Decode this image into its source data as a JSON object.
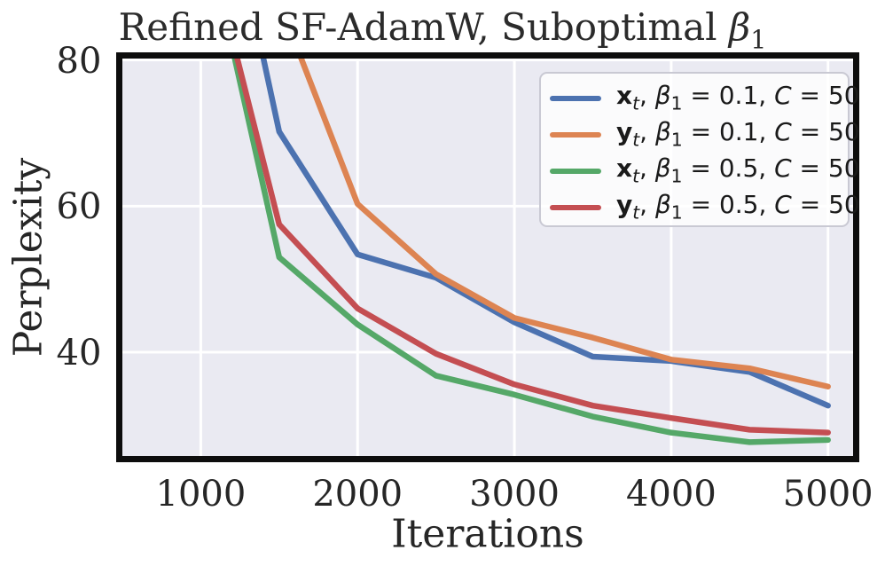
{
  "header": {
    "title_text": "Refined SF-AdamW, Suboptimal ",
    "title_symbol": "β",
    "title_symbol_sub": "1"
  },
  "axes": {
    "x_label": "Iterations",
    "y_label": "Perplexity"
  },
  "legend": {
    "items": [
      {
        "var": "x",
        "var_sub": "t",
        "pre": ", ",
        "beta": "β",
        "beta_sub": "1",
        "mid": " = 0.1, ",
        "c": "C",
        "tail": " = 50"
      },
      {
        "var": "y",
        "var_sub": "t",
        "pre": ", ",
        "beta": "β",
        "beta_sub": "1",
        "mid": " = 0.1, ",
        "c": "C",
        "tail": " = 50"
      },
      {
        "var": "x",
        "var_sub": "t",
        "pre": ", ",
        "beta": "β",
        "beta_sub": "1",
        "mid": " = 0.5, ",
        "c": "C",
        "tail": " = 50"
      },
      {
        "var": "y",
        "var_sub": "t",
        "pre": ", ",
        "beta": "β",
        "beta_sub": "1",
        "mid": " = 0.5, ",
        "c": "C",
        "tail": " = 50"
      }
    ]
  },
  "chart_data": {
    "type": "line",
    "title": "Refined SF-AdamW, Suboptimal β₁",
    "xlabel": "Iterations",
    "ylabel": "Perplexity",
    "xlim": [
      500,
      5160
    ],
    "ylim": [
      25.8,
      80.2
    ],
    "grid": true,
    "legend_position": "upper right",
    "background_color": "#EAEAF2",
    "grid_color": "#FFFFFF",
    "frame_color": "#0d0d0d",
    "x": [
      1000,
      1500,
      2000,
      2500,
      3000,
      3500,
      4000,
      4500,
      5000
    ],
    "xticks": [
      {
        "value": 1000,
        "label": "1000"
      },
      {
        "value": 2000,
        "label": "2000"
      },
      {
        "value": 3000,
        "label": "3000"
      },
      {
        "value": 4000,
        "label": "4000"
      },
      {
        "value": 5000,
        "label": "5000"
      }
    ],
    "yticks": [
      {
        "value": 80,
        "label": "80"
      },
      {
        "value": 60,
        "label": "60"
      },
      {
        "value": 40,
        "label": "40"
      }
    ],
    "series": [
      {
        "name": "x_t, β1 = 0.1, C = 50",
        "color": "#4C72B0",
        "values": [
          120,
          70.2,
          53.4,
          50.2,
          44.1,
          39.4,
          38.8,
          37.3,
          32.7
        ]
      },
      {
        "name": "y_t, β1 = 0.1, C = 50",
        "color": "#DD8452",
        "values": [
          150,
          88,
          60.3,
          50.7,
          44.7,
          42.0,
          39.0,
          37.8,
          35.3
        ]
      },
      {
        "name": "x_t, β1 = 0.5, C = 50",
        "color": "#55A868",
        "values": [
          101,
          53.0,
          43.8,
          36.8,
          34.2,
          31.2,
          29.0,
          27.7,
          28.0
        ]
      },
      {
        "name": "y_t, β1 = 0.5, C = 50",
        "color": "#C44E52",
        "values": [
          100,
          57.5,
          46.0,
          39.8,
          35.6,
          32.7,
          31.0,
          29.4,
          29.0
        ]
      }
    ]
  }
}
